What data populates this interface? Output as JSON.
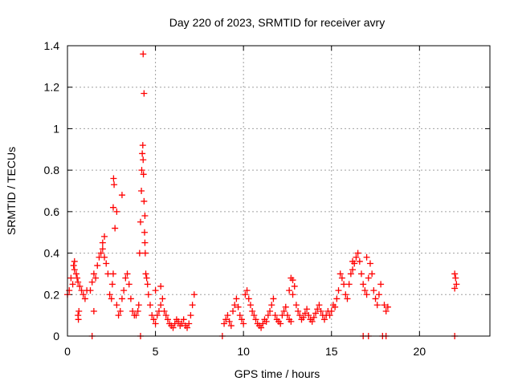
{
  "chart_data": {
    "type": "scatter",
    "title": "Day 220 of 2023, SRMTID for receiver avry",
    "xlabel": "GPS time / hours",
    "ylabel": "SRMTID / TECUs",
    "xlim": [
      0,
      24
    ],
    "ylim": [
      0,
      1.4
    ],
    "xticks": [
      0,
      5,
      10,
      15,
      20
    ],
    "yticks": [
      0,
      0.2,
      0.4,
      0.6,
      0.8,
      1,
      1.2,
      1.4
    ],
    "xtick_labels": [
      "0",
      "5",
      "10",
      "15",
      "20"
    ],
    "ytick_labels": [
      "0",
      "0.2",
      "0.4",
      "0.6",
      "0.8",
      "1",
      "1.2",
      "1.4"
    ],
    "grid": true,
    "marker": "+",
    "color": "#ff0000",
    "series": [
      {
        "name": "SRMTID",
        "x": [
          0.0,
          0.1,
          0.2,
          0.3,
          0.4,
          0.5,
          0.55,
          0.6,
          0.7,
          0.8,
          0.9,
          1.0,
          1.1,
          0.6,
          0.62,
          0.65,
          0.4,
          0.35,
          1.3,
          1.4,
          1.5,
          1.6,
          1.7,
          1.8,
          1.9,
          2.0,
          2.1,
          2.2,
          2.3,
          2.0,
          2.1,
          1.5,
          2.4,
          2.5,
          2.55,
          2.6,
          2.62,
          2.65,
          2.6,
          2.7,
          2.8,
          2.9,
          3.0,
          3.1,
          3.2,
          3.3,
          3.4,
          3.5,
          3.6,
          3.7,
          3.8,
          2.8,
          3.1,
          3.9,
          4.0,
          4.05,
          4.1,
          4.15,
          4.2,
          4.22,
          4.25,
          4.28,
          4.3,
          4.32,
          4.35,
          4.38,
          4.4,
          4.42,
          4.45,
          4.5,
          4.55,
          4.3,
          4.35,
          4.4,
          4.6,
          4.7,
          4.8,
          4.9,
          5.0,
          5.1,
          5.2,
          5.3,
          5.4,
          5.5,
          5.6,
          5.7,
          5.8,
          5.9,
          6.0,
          6.1,
          6.2,
          6.3,
          6.4,
          6.5,
          6.6,
          6.7,
          6.8,
          6.9,
          7.0,
          7.1,
          7.2,
          5.0,
          5.3,
          8.9,
          9.0,
          9.1,
          9.2,
          9.3,
          9.4,
          9.5,
          9.6,
          9.7,
          9.8,
          9.9,
          10.0,
          10.1,
          10.2,
          10.3,
          10.4,
          10.5,
          10.6,
          10.7,
          10.8,
          10.9,
          11.0,
          11.1,
          11.2,
          11.3,
          11.4,
          11.5,
          11.6,
          11.7,
          11.8,
          11.9,
          12.0,
          12.1,
          12.2,
          12.3,
          12.4,
          12.5,
          12.6,
          12.7,
          12.8,
          12.9,
          13.0,
          13.1,
          13.2,
          13.3,
          13.4,
          13.5,
          13.6,
          13.7,
          13.8,
          13.9,
          14.0,
          14.1,
          14.2,
          14.3,
          14.4,
          14.5,
          14.6,
          14.7,
          14.8,
          12.8,
          12.6,
          12.7,
          14.9,
          15.0,
          15.1,
          15.2,
          15.3,
          15.4,
          15.5,
          15.6,
          15.7,
          15.8,
          15.9,
          16.0,
          16.1,
          16.2,
          16.3,
          16.4,
          16.5,
          16.6,
          16.7,
          16.8,
          16.9,
          17.0,
          17.1,
          17.2,
          17.3,
          17.4,
          17.5,
          17.6,
          17.7,
          17.8,
          18.0,
          18.1,
          18.2,
          16.2,
          17.0,
          22.0,
          22.05,
          22.1,
          22.0,
          1.4,
          4.15,
          8.8,
          16.8,
          17.1,
          17.9,
          18.1,
          22.0
        ],
        "y": [
          0.2,
          0.22,
          0.28,
          0.25,
          0.32,
          0.3,
          0.28,
          0.26,
          0.24,
          0.22,
          0.2,
          0.18,
          0.22,
          0.1,
          0.08,
          0.12,
          0.36,
          0.34,
          0.22,
          0.26,
          0.3,
          0.28,
          0.34,
          0.38,
          0.4,
          0.42,
          0.38,
          0.35,
          0.3,
          0.45,
          0.48,
          0.12,
          0.2,
          0.18,
          0.25,
          0.3,
          0.76,
          0.73,
          0.62,
          0.52,
          0.15,
          0.1,
          0.12,
          0.18,
          0.22,
          0.28,
          0.3,
          0.25,
          0.18,
          0.12,
          0.1,
          0.6,
          0.68,
          0.1,
          0.12,
          0.15,
          0.4,
          0.55,
          0.7,
          0.8,
          0.88,
          0.92,
          0.85,
          0.78,
          0.65,
          0.5,
          0.45,
          0.4,
          0.3,
          0.28,
          0.25,
          1.36,
          1.17,
          0.58,
          0.2,
          0.15,
          0.1,
          0.08,
          0.06,
          0.1,
          0.12,
          0.15,
          0.18,
          0.12,
          0.1,
          0.08,
          0.06,
          0.05,
          0.04,
          0.06,
          0.08,
          0.07,
          0.05,
          0.06,
          0.08,
          0.05,
          0.04,
          0.06,
          0.1,
          0.15,
          0.2,
          0.22,
          0.24,
          0.06,
          0.08,
          0.1,
          0.07,
          0.05,
          0.12,
          0.15,
          0.18,
          0.14,
          0.1,
          0.08,
          0.06,
          0.2,
          0.22,
          0.18,
          0.15,
          0.12,
          0.1,
          0.08,
          0.06,
          0.05,
          0.04,
          0.06,
          0.08,
          0.07,
          0.1,
          0.12,
          0.15,
          0.18,
          0.1,
          0.08,
          0.07,
          0.06,
          0.1,
          0.12,
          0.14,
          0.1,
          0.08,
          0.07,
          0.2,
          0.24,
          0.15,
          0.12,
          0.1,
          0.08,
          0.09,
          0.11,
          0.13,
          0.1,
          0.08,
          0.07,
          0.09,
          0.11,
          0.13,
          0.15,
          0.12,
          0.1,
          0.08,
          0.1,
          0.12,
          0.27,
          0.22,
          0.28,
          0.1,
          0.12,
          0.15,
          0.14,
          0.18,
          0.22,
          0.3,
          0.28,
          0.25,
          0.2,
          0.18,
          0.25,
          0.3,
          0.32,
          0.35,
          0.38,
          0.4,
          0.36,
          0.3,
          0.25,
          0.22,
          0.2,
          0.28,
          0.35,
          0.3,
          0.22,
          0.18,
          0.15,
          0.2,
          0.25,
          0.15,
          0.12,
          0.14,
          0.36,
          0.38,
          0.3,
          0.28,
          0.25,
          0.23,
          0.0,
          0.0,
          0.0,
          0.0,
          0.0,
          0.0,
          0.0,
          0.0
        ]
      }
    ]
  }
}
